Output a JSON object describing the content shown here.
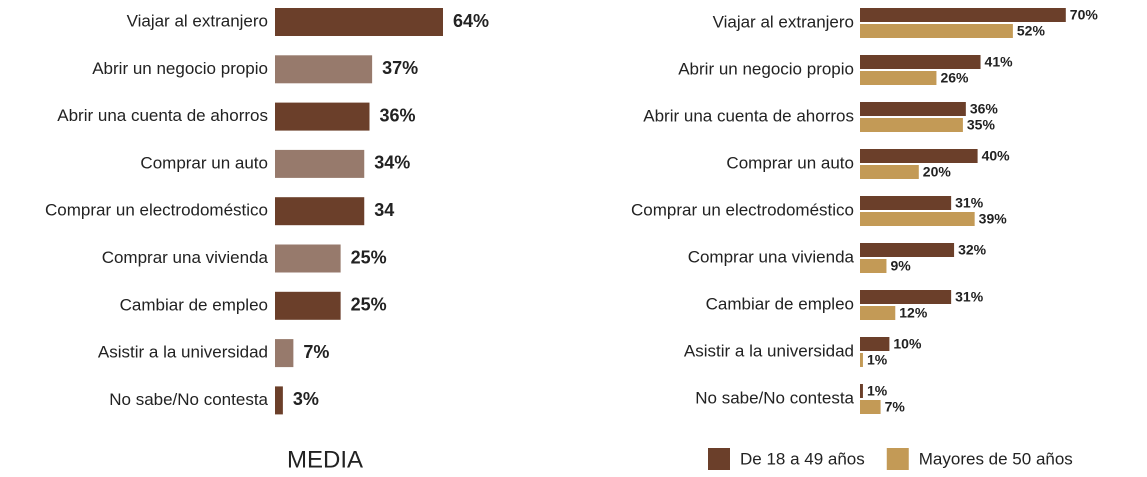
{
  "chart_data": [
    {
      "type": "bar",
      "orientation": "horizontal",
      "title": "MEDIA",
      "categories": [
        "Viajar al extranjero",
        "Abrir un negocio propio",
        "Abrir una cuenta de ahorros",
        "Comprar un auto",
        "Comprar un electrodoméstico",
        "Comprar una vivienda",
        "Cambiar de empleo",
        "Asistir a la universidad",
        "No sabe/No contesta"
      ],
      "values": [
        64,
        37,
        36,
        34,
        34,
        25,
        25,
        7,
        3
      ],
      "value_labels": [
        "64%",
        "37%",
        "36%",
        "34%",
        "34",
        "25%",
        "25%",
        "7%",
        "3%"
      ],
      "colors": [
        "#6b3f2a",
        "#977a6c",
        "#6b3f2a",
        "#977a6c",
        "#6b3f2a",
        "#977a6c",
        "#6b3f2a",
        "#977a6c",
        "#6b3f2a"
      ]
    },
    {
      "type": "grouped-bar",
      "orientation": "horizontal",
      "legend": "bottom-right",
      "categories": [
        "Viajar al extranjero",
        "Abrir un negocio propio",
        "Abrir una cuenta de ahorros",
        "Comprar un auto",
        "Comprar un electrodoméstico",
        "Comprar una vivienda",
        "Cambiar de empleo",
        "Asistir a la universidad",
        "No sabe/No contesta"
      ],
      "series": [
        {
          "name": "De 18 a 49 años",
          "color": "#6b3f2a",
          "values": [
            70,
            41,
            36,
            40,
            31,
            32,
            31,
            10,
            1
          ],
          "value_labels": [
            "70%",
            "41%",
            "36%",
            "40%",
            "31%",
            "32%",
            "31%",
            "10%",
            "1%"
          ]
        },
        {
          "name": "Mayores de 50 años",
          "color": "#c39a56",
          "values": [
            52,
            26,
            35,
            20,
            39,
            9,
            12,
            1,
            7
          ],
          "value_labels": [
            "52%",
            "26%",
            "35%",
            "20%",
            "39%",
            "9%",
            "12%",
            "1%",
            "7%"
          ]
        }
      ]
    }
  ]
}
